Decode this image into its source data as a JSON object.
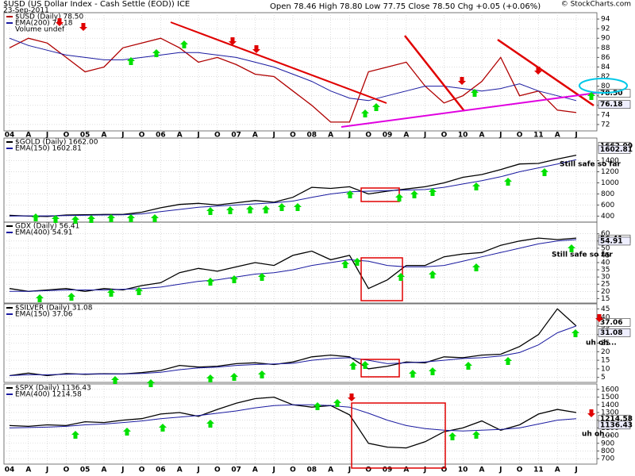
{
  "chart_data": [
    {
      "type": "line",
      "title": "$USD (US Dollar Index - Cash Settle (EOD)) ICE",
      "date": "23-Sep-2011",
      "quote": "Open 78.46 High 78.80 Low 77.75 Close 78.50 Chg +0.05 (+0.06%)",
      "source": "© StockCharts.com",
      "legend_extra": "Volume undef",
      "categories": [
        "04",
        "A",
        "J",
        "O",
        "05",
        "A",
        "J",
        "O",
        "06",
        "A",
        "J",
        "O",
        "07",
        "A",
        "J",
        "O",
        "08",
        "A",
        "J",
        "O",
        "09",
        "A",
        "J",
        "O",
        "10",
        "A",
        "J",
        "O",
        "11",
        "A",
        "J"
      ],
      "series": [
        {
          "name": "$USD (Daily) 78.50",
          "color": "#b00000",
          "values": [
            88,
            90,
            89,
            86,
            83,
            84,
            88,
            89,
            90,
            88,
            85,
            86,
            84.5,
            82.5,
            82,
            79,
            76,
            72.5,
            72.5,
            83,
            84,
            85,
            80,
            76.5,
            78,
            81,
            86,
            78,
            79,
            75,
            74.5
          ]
        },
        {
          "name": "EMA(200) 76.18",
          "color": "#1a1aa0",
          "values": [
            90,
            88.5,
            87.5,
            86.5,
            86,
            85.5,
            85.5,
            86,
            86.5,
            87,
            87,
            86.5,
            86,
            85,
            84,
            82.5,
            81,
            79,
            77.5,
            77,
            78,
            79,
            80,
            80,
            79.5,
            79,
            79.5,
            80.5,
            79,
            78,
            77
          ]
        }
      ],
      "last": [
        {
          "value": 78.5,
          "label": "78.50"
        },
        {
          "value": 76.18,
          "label": "76.18"
        }
      ],
      "ylim": [
        71,
        95
      ],
      "yticks": [
        72,
        74,
        76,
        78,
        80,
        82,
        84,
        86,
        88,
        90,
        92,
        94
      ],
      "grid": true
    },
    {
      "type": "line",
      "series": [
        {
          "name": "$GOLD (Daily) 1662.00",
          "color": "#000000",
          "values": [
            415,
            400,
            395,
            420,
            425,
            430,
            430,
            470,
            550,
            610,
            630,
            600,
            640,
            680,
            650,
            740,
            920,
            900,
            930,
            800,
            850,
            890,
            930,
            1000,
            1100,
            1150,
            1240,
            1340,
            1350,
            1430,
            1500
          ]
        },
        {
          "name": "EMA(150) 1602.81",
          "color": "#1a1aa0",
          "values": [
            400,
            405,
            405,
            410,
            415,
            420,
            425,
            440,
            480,
            520,
            560,
            580,
            600,
            620,
            640,
            670,
            740,
            800,
            840,
            850,
            860,
            870,
            880,
            920,
            980,
            1040,
            1110,
            1200,
            1270,
            1340,
            1420
          ]
        }
      ],
      "last": [
        {
          "value": 1662,
          "label": "1662.00"
        },
        {
          "value": 1602.81,
          "label": "1602.81"
        }
      ],
      "annotations": [
        {
          "text": "Still safe so far",
          "color": "#e00000"
        }
      ],
      "ylim": [
        320,
        1780
      ],
      "yticks": [
        400,
        600,
        800,
        1000,
        1200,
        1400
      ],
      "grid": true
    },
    {
      "type": "line",
      "series": [
        {
          "name": "GDX (Daily) 56.41",
          "color": "#000000",
          "values": [
            22,
            20,
            21,
            22,
            20,
            22,
            21,
            24,
            26,
            33,
            36,
            34,
            37,
            40,
            38,
            45,
            48,
            42,
            45,
            22,
            28,
            38,
            38,
            44,
            46,
            47,
            52,
            55,
            57,
            56,
            57
          ]
        },
        {
          "name": "EMA(400) 54.91",
          "color": "#1a1aa0",
          "values": [
            20,
            20,
            20.5,
            21,
            21,
            21,
            21.5,
            22,
            23,
            25,
            27,
            28,
            30,
            32,
            33,
            35,
            38,
            40,
            42,
            41,
            38,
            37,
            37,
            38,
            41,
            44,
            47,
            50,
            53,
            55,
            56
          ]
        }
      ],
      "last": [
        {
          "value": 56.41,
          "label": "56.41"
        },
        {
          "value": 54.91,
          "label": "54.91"
        }
      ],
      "annotations": [
        {
          "text": "Still safe so far",
          "color": "#e00000"
        }
      ],
      "ylim": [
        13,
        67
      ],
      "yticks": [
        15,
        20,
        25,
        30,
        35,
        40,
        45,
        50,
        55,
        60
      ],
      "grid": true
    },
    {
      "type": "line",
      "series": [
        {
          "name": "$SILVER (Daily) 31.08",
          "color": "#000000",
          "values": [
            6,
            7.5,
            6,
            7.2,
            6.8,
            7.1,
            7,
            7.8,
            9,
            12,
            11,
            11.5,
            13,
            13.5,
            12.5,
            14,
            17,
            18,
            17,
            10,
            11.5,
            14,
            13.5,
            17,
            16.5,
            18,
            18.5,
            23,
            30,
            45,
            35
          ]
        },
        {
          "name": "EMA(150) 37.06",
          "color": "#1a1aa0",
          "values": [
            6,
            6.5,
            6.5,
            6.8,
            7,
            7,
            7,
            7.3,
            8,
            9.5,
            10.5,
            11,
            12,
            12.5,
            12.8,
            13.2,
            15,
            16,
            16.5,
            15,
            13,
            13.5,
            14,
            15,
            16,
            16.5,
            17.5,
            19.5,
            24,
            31,
            35
          ]
        }
      ],
      "last": [
        {
          "value": 37.06,
          "label": "37.06"
        },
        {
          "value": 31.08,
          "label": "31.08"
        }
      ],
      "annotations": [
        {
          "text": "uh oh...",
          "color": "#e00000"
        }
      ],
      "ylim": [
        3,
        47
      ],
      "yticks": [
        5,
        10,
        15,
        20,
        25,
        30,
        35,
        40,
        45
      ],
      "grid": true
    },
    {
      "type": "line",
      "categories": [
        "04",
        "A",
        "J",
        "O",
        "05",
        "A",
        "J",
        "O",
        "06",
        "A",
        "J",
        "O",
        "07",
        "A",
        "J",
        "O",
        "08",
        "A",
        "J",
        "O",
        "09",
        "A",
        "J",
        "O",
        "10",
        "A",
        "J",
        "O",
        "11",
        "A",
        "J"
      ],
      "series": [
        {
          "name": "$SPX (Daily) 1136.43",
          "color": "#000000",
          "values": [
            1130,
            1120,
            1140,
            1130,
            1180,
            1170,
            1200,
            1220,
            1280,
            1300,
            1250,
            1340,
            1420,
            1480,
            1500,
            1400,
            1370,
            1390,
            1270,
            900,
            850,
            840,
            920,
            1050,
            1100,
            1190,
            1070,
            1140,
            1280,
            1340,
            1300
          ]
        },
        {
          "name": "EMA(400) 1214.58",
          "color": "#1a1aa0",
          "values": [
            1100,
            1105,
            1110,
            1120,
            1140,
            1150,
            1170,
            1190,
            1220,
            1240,
            1260,
            1290,
            1320,
            1360,
            1390,
            1400,
            1400,
            1390,
            1370,
            1290,
            1200,
            1130,
            1090,
            1070,
            1060,
            1070,
            1080,
            1100,
            1150,
            1200,
            1220
          ]
        }
      ],
      "last": [
        {
          "value": 1214.58,
          "label": "1214.58"
        },
        {
          "value": 1136.43,
          "label": "1136.43"
        }
      ],
      "annotations": [
        {
          "text": "uh oh...",
          "color": "#e00000"
        }
      ],
      "ylim": [
        650,
        1650
      ],
      "yticks": [
        700,
        800,
        900,
        1000,
        1100,
        1200,
        1300,
        1400,
        1500,
        1600
      ],
      "grid": true
    }
  ]
}
